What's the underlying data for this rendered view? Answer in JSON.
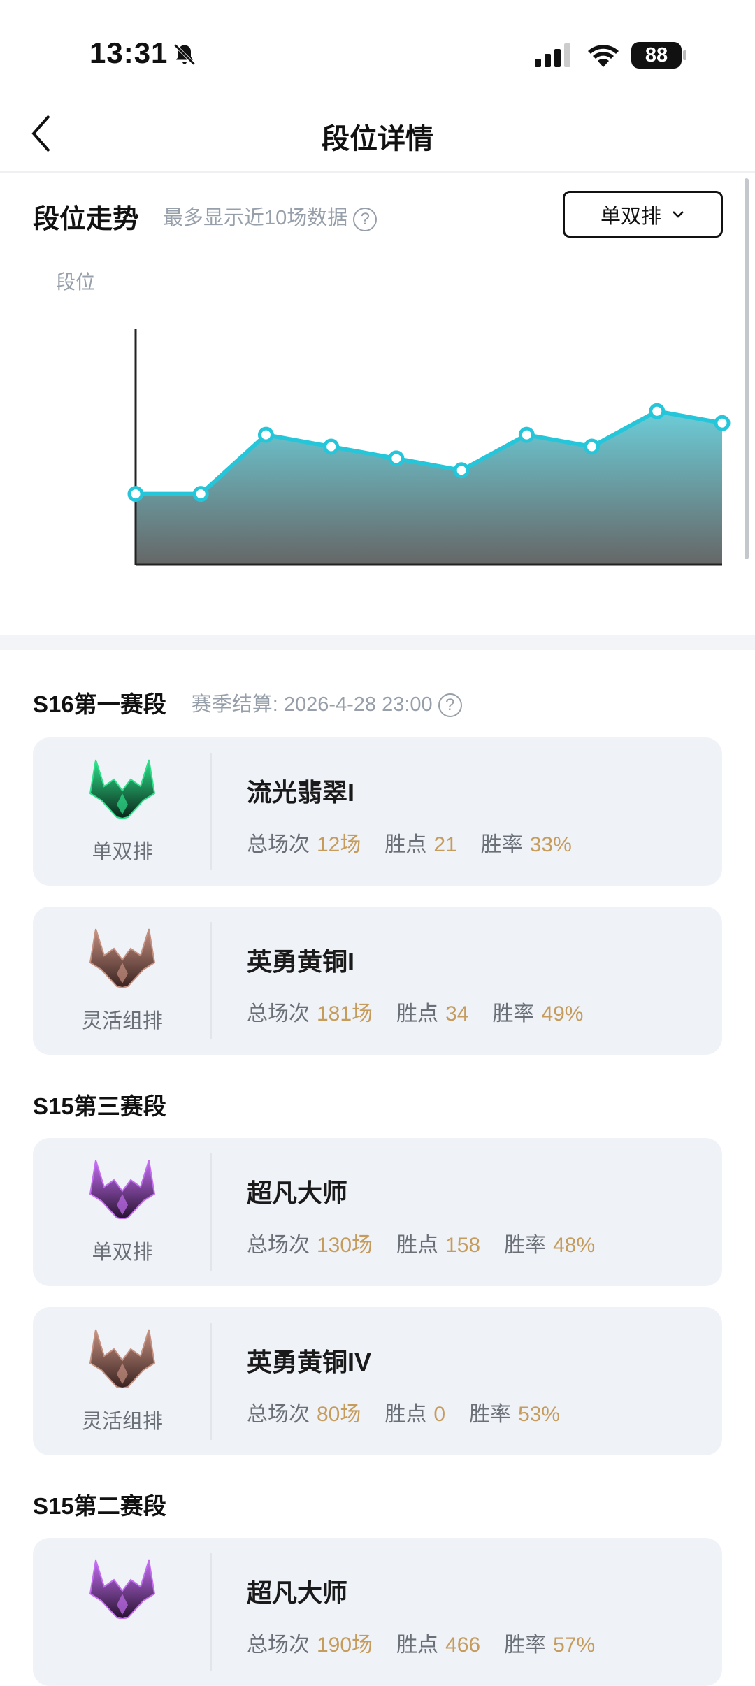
{
  "status_bar": {
    "time": "13:31",
    "battery": "88",
    "icons": [
      "bell-slash-icon",
      "signal-icon",
      "wifi-icon",
      "battery-icon"
    ]
  },
  "nav": {
    "title": "段位详情",
    "back_icon": "chevron-left-icon"
  },
  "trend": {
    "title": "段位走势",
    "subtitle": "最多显示近10场数据",
    "help_icon": "question-circle-icon",
    "dropdown": {
      "selected": "单双排",
      "icon": "chevron-down-icon"
    }
  },
  "chart_data": {
    "type": "area",
    "ylabel": "段位",
    "x": [
      1,
      2,
      3,
      4,
      5,
      6,
      7,
      8,
      9,
      10
    ],
    "values": [
      6,
      6,
      11,
      10,
      9,
      8,
      11,
      10,
      13,
      12
    ],
    "ylim": [
      0,
      20
    ],
    "grid": false,
    "line_color": "#26c6da",
    "fill_top": "#6ccdd8",
    "fill_bottom": "#666666"
  },
  "seasons": [
    {
      "title": "S16第一赛段",
      "settle": "赛季结算: 2026-4-28 23:00",
      "cards": [
        {
          "queue": "单双排",
          "tier": "流光翡翠I",
          "emblem": "emerald",
          "games_label": "总场次",
          "games": "12场",
          "lp_label": "胜点",
          "lp": "21",
          "wr_label": "胜率",
          "wr": "33%"
        },
        {
          "queue": "灵活组排",
          "tier": "英勇黄铜I",
          "emblem": "bronze",
          "games_label": "总场次",
          "games": "181场",
          "lp_label": "胜点",
          "lp": "34",
          "wr_label": "胜率",
          "wr": "49%"
        }
      ]
    },
    {
      "title": "S15第三赛段",
      "cards": [
        {
          "queue": "单双排",
          "tier": "超凡大师",
          "emblem": "master",
          "games_label": "总场次",
          "games": "130场",
          "lp_label": "胜点",
          "lp": "158",
          "wr_label": "胜率",
          "wr": "48%"
        },
        {
          "queue": "灵活组排",
          "tier": "英勇黄铜IV",
          "emblem": "bronze",
          "games_label": "总场次",
          "games": "80场",
          "lp_label": "胜点",
          "lp": "0",
          "wr_label": "胜率",
          "wr": "53%"
        }
      ]
    },
    {
      "title": "S15第二赛段",
      "cards": [
        {
          "tier": "超凡大师",
          "emblem": "master",
          "games_label": "总场次",
          "games": "190场",
          "lp_label": "胜点",
          "lp": "466",
          "wr_label": "胜率",
          "wr": "57%"
        }
      ]
    }
  ],
  "colors": {
    "accent": "#26c6da",
    "value": "#c69c5d",
    "card_bg": "#eff2f7"
  }
}
